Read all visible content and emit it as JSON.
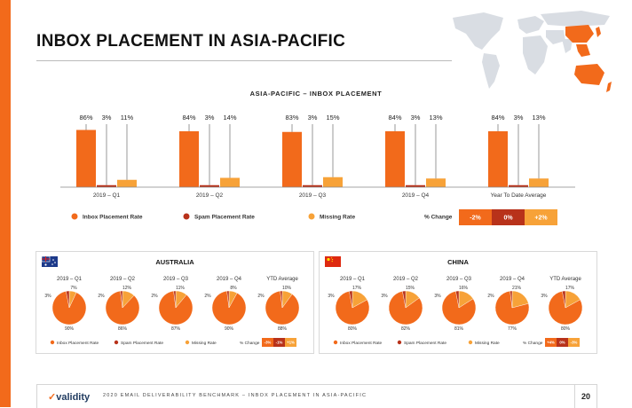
{
  "page": {
    "title": "INBOX PLACEMENT IN ASIA-PACIFIC",
    "chart_title": "ASIA-PACIFIC – INBOX PLACEMENT",
    "footer_logo": "validity",
    "footer_text": "2020 EMAIL DELIVERABILITY BENCHMARK – INBOX PLACEMENT IN ASIA-PACIFIC",
    "page_number": "20"
  },
  "colors": {
    "inbox": "#f26a1b",
    "spam": "#b8321a",
    "missing": "#f7a238",
    "accent_bar": "#f26a1b"
  },
  "chart_data": [
    {
      "type": "bar",
      "title": "ASIA-PACIFIC – INBOX PLACEMENT",
      "categories": [
        "2019 – Q1",
        "2019 – Q2",
        "2019 – Q3",
        "2019 – Q4",
        "Year To Date Average"
      ],
      "series": [
        {
          "name": "Inbox Placement Rate",
          "values": [
            86,
            84,
            83,
            84,
            84
          ],
          "labels": [
            "86%",
            "84%",
            "83%",
            "84%",
            "84%"
          ]
        },
        {
          "name": "Spam Placement Rate",
          "values": [
            3,
            3,
            3,
            3,
            3
          ],
          "labels": [
            "3%",
            "3%",
            "3%",
            "3%",
            "3%"
          ]
        },
        {
          "name": "Missing Rate",
          "values": [
            11,
            14,
            15,
            13,
            13
          ],
          "labels": [
            "11%",
            "14%",
            "15%",
            "13%",
            "13%"
          ]
        }
      ],
      "ylim": [
        0,
        100
      ],
      "legend": {
        "position": "bottom"
      },
      "percent_change": {
        "label": "% Change",
        "items": [
          "-2%",
          "0%",
          "+2%"
        ]
      }
    },
    {
      "type": "pie",
      "title": "AUSTRALIA",
      "flag": "australia-flag",
      "categories": [
        "2019 – Q1",
        "2019 – Q2",
        "2019 – Q3",
        "2019 – Q4",
        "YTD Average"
      ],
      "series": [
        {
          "name": "Inbox Placement Rate",
          "values": [
            90,
            86,
            87,
            90,
            88
          ],
          "labels": [
            "90%",
            "86%",
            "87%",
            "90%",
            "88%"
          ]
        },
        {
          "name": "Spam Placement Rate",
          "values": [
            3,
            2,
            2,
            2,
            2
          ],
          "labels": [
            "3%",
            "2%",
            "2%",
            "2%",
            "2%"
          ]
        },
        {
          "name": "Missing Rate",
          "values": [
            7,
            12,
            11,
            8,
            10
          ],
          "labels": [
            "7%",
            "12%",
            "11%",
            "8%",
            "10%"
          ]
        }
      ],
      "legend": {
        "position": "bottom"
      },
      "percent_change": {
        "label": "% Change",
        "items": [
          "-3%",
          "-1%",
          "+1%"
        ]
      }
    },
    {
      "type": "pie",
      "title": "CHINA",
      "flag": "china-flag",
      "categories": [
        "2019 – Q1",
        "2019 – Q2",
        "2019 – Q3",
        "2019 – Q4",
        "YTD Average"
      ],
      "series": [
        {
          "name": "Inbox Placement Rate",
          "values": [
            80,
            82,
            81,
            77,
            80
          ],
          "labels": [
            "80%",
            "82%",
            "81%",
            "77%",
            "80%"
          ]
        },
        {
          "name": "Spam Placement Rate",
          "values": [
            3,
            3,
            3,
            2,
            3
          ],
          "labels": [
            "3%",
            "3%",
            "3%",
            "2%",
            "3%"
          ]
        },
        {
          "name": "Missing Rate",
          "values": [
            17,
            15,
            16,
            21,
            17
          ],
          "labels": [
            "17%",
            "15%",
            "16%",
            "21%",
            "17%"
          ]
        }
      ],
      "legend": {
        "position": "bottom"
      },
      "percent_change": {
        "label": "% Change",
        "items": [
          "+4%",
          "0%",
          "-3%"
        ]
      }
    }
  ]
}
